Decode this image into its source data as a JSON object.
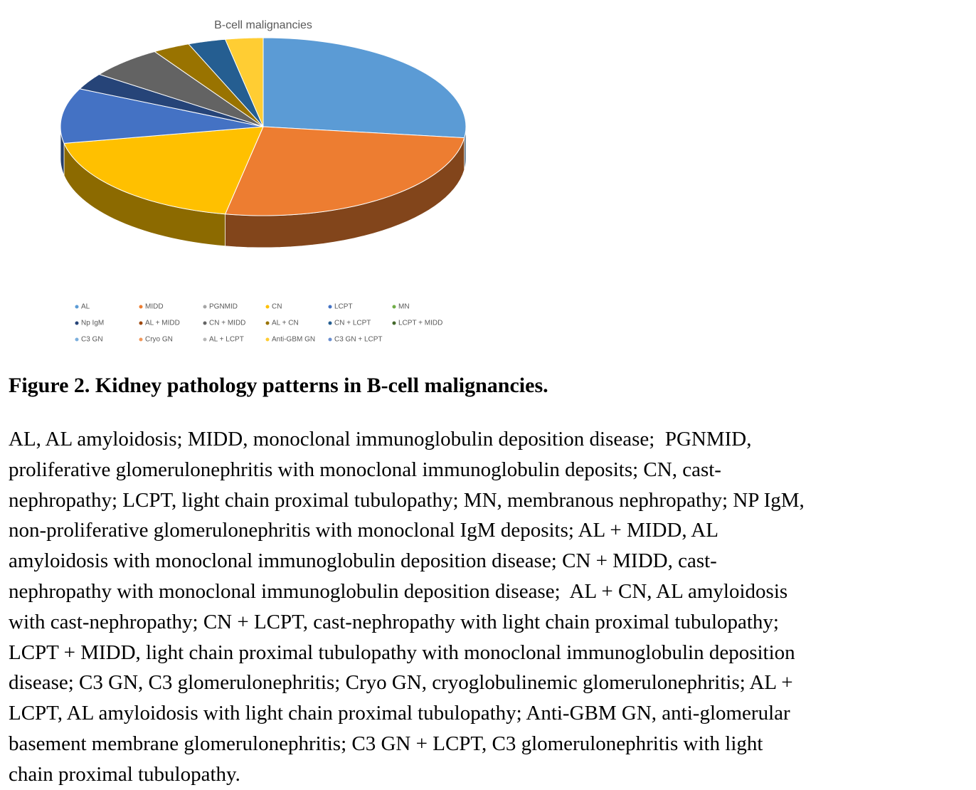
{
  "chart_data": {
    "type": "pie",
    "title": "B-cell malignancies",
    "categories": [
      "AL",
      "MIDD",
      "PGNMID",
      "CN",
      "LCPT",
      "MN",
      "Np IgM",
      "AL + MIDD",
      "CN + MIDD",
      "AL + CN",
      "CN + LCPT",
      "LCPT + MIDD",
      "C3 GN",
      "Cryo GN",
      "AL + LCPT",
      "Anti-GBM GN",
      "C3 GN + LCPT"
    ],
    "values": [
      27,
      26,
      0,
      19,
      10,
      0,
      3,
      0,
      6,
      3,
      3,
      0,
      0,
      0,
      0,
      3,
      0
    ],
    "colors": [
      "#5b9bd5",
      "#ed7d31",
      "#a5a5a5",
      "#ffc000",
      "#4472c4",
      "#70ad47",
      "#264478",
      "#9e480e",
      "#636363",
      "#997300",
      "#255e91",
      "#43682b",
      "#7cafdd",
      "#f1975a",
      "#b7b7b7",
      "#ffcd33",
      "#698ed0"
    ]
  },
  "caption": {
    "title": "Figure 2. Kidney pathology patterns in B-cell malignancies.",
    "lines": [
      "AL, AL amyloidosis; MIDD, monoclonal immunoglobulin deposition disease;  PGNMID,",
      "proliferative glomerulonephritis with monoclonal immunoglobulin deposits; CN, cast-",
      "nephropathy; LCPT, light chain proximal tubulopathy; MN, membranous nephropathy; NP IgM,",
      "non-proliferative glomerulonephritis with monoclonal IgM deposits; AL + MIDD, AL",
      "amyloidosis with monoclonal immunoglobulin deposition disease; CN + MIDD, cast-",
      "nephropathy with monoclonal immunoglobulin deposition disease;  AL + CN, AL amyloidosis",
      "with cast-nephropathy; CN + LCPT, cast-nephropathy with light chain proximal tubulopathy;",
      "LCPT + MIDD, light chain proximal tubulopathy with monoclonal immunoglobulin deposition",
      "disease; C3 GN, C3 glomerulonephritis; Cryo GN, cryoglobulinemic glomerulonephritis; AL +",
      "LCPT, AL amyloidosis with light chain proximal tubulopathy; Anti-GBM GN, anti-glomerular",
      "basement membrane glomerulonephritis; C3 GN + LCPT, C3 glomerulonephritis with light",
      "chain proximal tubulopathy."
    ]
  }
}
